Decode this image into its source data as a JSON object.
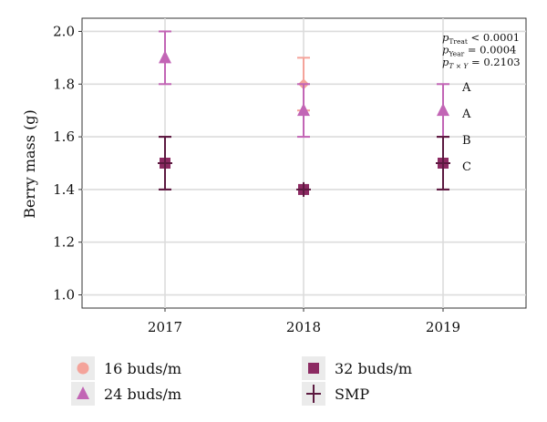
{
  "chart_data": {
    "type": "scatter",
    "ylabel": "Berry mass (g)",
    "xlabel": "",
    "categories": [
      "2017",
      "2018",
      "2019"
    ],
    "ylim": [
      0.95,
      2.05
    ],
    "yticks": [
      "1.0",
      "1.2",
      "1.4",
      "1.6",
      "1.8",
      "2.0"
    ],
    "grid": true,
    "legend_position": "bottom",
    "series": [
      {
        "name": "16 buds/m",
        "marker": "circle",
        "color": "#f4a39a",
        "values": [
          null,
          1.8,
          null
        ],
        "ci_low": [
          null,
          1.7,
          null
        ],
        "ci_high": [
          null,
          1.9,
          null
        ]
      },
      {
        "name": "24 buds/m",
        "marker": "triangle",
        "color": "#c265b5",
        "values": [
          1.9,
          1.7,
          1.7
        ],
        "ci_low": [
          1.8,
          1.6,
          1.6
        ],
        "ci_high": [
          2.0,
          1.8,
          1.8
        ]
      },
      {
        "name": "32 buds/m",
        "marker": "square",
        "color": "#8c2a62",
        "values": [
          1.5,
          1.4,
          1.5
        ],
        "ci_low": [
          1.4,
          1.4,
          1.4
        ],
        "ci_high": [
          1.6,
          1.4,
          1.6
        ]
      },
      {
        "name": "SMP",
        "marker": "plus",
        "color": "#5c1a40",
        "values": [
          1.5,
          1.4,
          1.5
        ],
        "ci_low": [
          1.4,
          1.4,
          1.4
        ],
        "ci_high": [
          1.6,
          1.4,
          1.6
        ]
      }
    ],
    "annotations": {
      "pvalues": [
        {
          "sym": "p",
          "sub": "Treat",
          "rest": " < 0.0001"
        },
        {
          "sym": "p",
          "sub": "Year",
          "rest": " = 0.0004"
        },
        {
          "sym": "p",
          "sub": "T × Y",
          "rest": " = 0.2103"
        }
      ],
      "letters": [
        {
          "text": "A",
          "y": 1.79
        },
        {
          "text": "A",
          "y": 1.69
        },
        {
          "text": "B",
          "y": 1.59
        },
        {
          "text": "C",
          "y": 1.49
        }
      ]
    }
  }
}
